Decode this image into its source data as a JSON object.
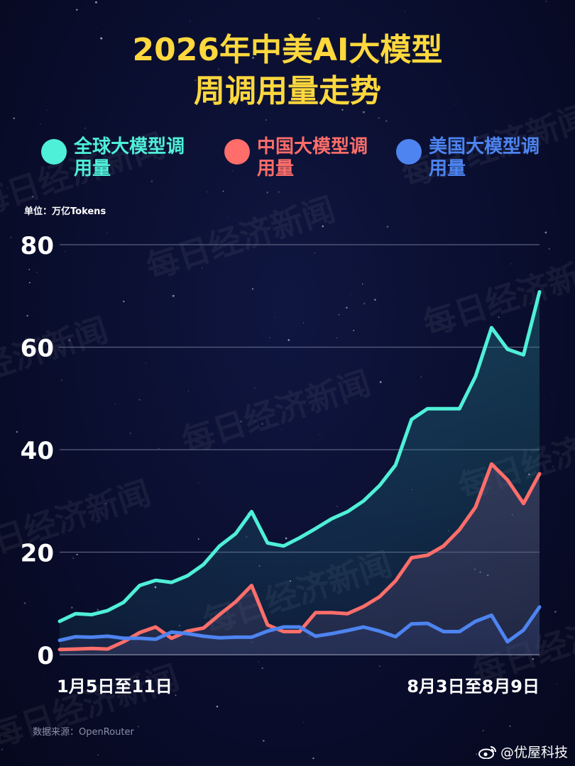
{
  "title_line1": "2026年中美AI大模型",
  "title_line2": "周调用量走势",
  "unit": "单位：万亿Tokens",
  "source": "数据来源：OpenRouter",
  "account": "@优屋科技",
  "watermark": "每日经济新闻",
  "colors": {
    "global": "#4ff0d8",
    "china": "#ff6e6a",
    "us": "#4d84f0",
    "title": "#ffd83d"
  },
  "legend": [
    {
      "label": "全球大模型调用量",
      "color": "#4ff0d8"
    },
    {
      "label": "中国大模型调用量",
      "color": "#ff6e6a"
    },
    {
      "label": "美国大模型调用量",
      "color": "#4d84f0"
    }
  ],
  "chart_data": {
    "type": "area",
    "x_labels_shown": [
      "1月5日至11日",
      "8月3日至8月9日"
    ],
    "ylim": [
      0,
      80
    ],
    "yticks": [
      "0",
      "20",
      "40",
      "60",
      "80"
    ],
    "grid": true,
    "legend_position": "top",
    "series": [
      {
        "name": "全球大模型调用量",
        "color": "#4ff0d8",
        "values": [
          6.5,
          8,
          7.8,
          8.6,
          10.2,
          13.5,
          14.5,
          14.1,
          15.4,
          17.6,
          21.2,
          23.6,
          27.9,
          21.8,
          21.2,
          22.8,
          24.6,
          26.5,
          27.9,
          30,
          33,
          37,
          45.9,
          48,
          48,
          48,
          54.3,
          63.8,
          59.6,
          58.5,
          70.8
        ]
      },
      {
        "name": "中国大模型调用量",
        "color": "#ff6e6a",
        "values": [
          1,
          1.1,
          1.2,
          1.1,
          2.5,
          4.3,
          5.4,
          3.2,
          4.6,
          5.2,
          7.8,
          10.3,
          13.5,
          5.8,
          4.5,
          4.5,
          8.2,
          8.2,
          8,
          9.4,
          11.3,
          14.4,
          18.9,
          19.4,
          21.2,
          24.4,
          28.8,
          37.2,
          34.1,
          29.5,
          35.3
        ]
      },
      {
        "name": "美国大模型调用量",
        "color": "#4d84f0",
        "values": [
          2.8,
          3.5,
          3.4,
          3.6,
          3.2,
          3.2,
          3,
          4.4,
          4.1,
          3.6,
          3.3,
          3.4,
          3.4,
          4.6,
          5.4,
          5.4,
          3.6,
          4.1,
          4.7,
          5.4,
          4.6,
          3.5,
          6,
          6.1,
          4.5,
          4.5,
          6.5,
          7.7,
          2.5,
          4.8,
          9.3
        ]
      }
    ]
  }
}
